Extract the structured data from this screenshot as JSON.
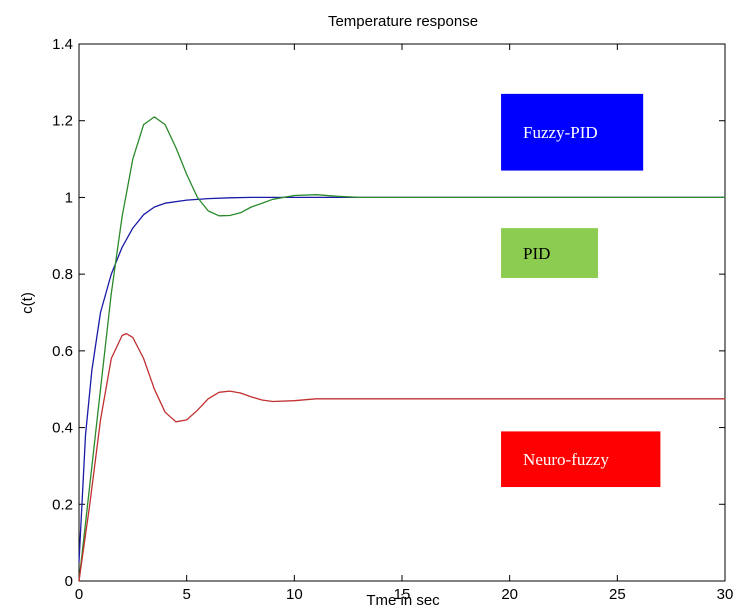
{
  "chart_data": {
    "type": "line",
    "title": "Temperature response",
    "xlabel": "Tme in sec",
    "ylabel": "c(t)",
    "xlim": [
      0,
      30
    ],
    "ylim": [
      0,
      1.4
    ],
    "xticks": [
      0,
      5,
      10,
      15,
      20,
      25,
      30
    ],
    "xtick_labels": [
      "0",
      "5",
      "10",
      "15",
      "20",
      "25",
      "30"
    ],
    "yticks": [
      0,
      0.2,
      0.4,
      0.6,
      0.8,
      1.0,
      1.2,
      1.4
    ],
    "ytick_labels": [
      "0",
      "0.2",
      "0.4",
      "0.6",
      "0.8",
      "1",
      "1.2",
      "1.4"
    ],
    "grid": false,
    "series": [
      {
        "name": "Fuzzy-PID",
        "color": "#1a1aa8",
        "x": [
          0,
          0.3,
          0.6,
          1,
          1.5,
          2,
          2.5,
          3,
          3.5,
          4,
          5,
          6,
          7,
          8,
          10,
          12,
          15,
          20,
          25,
          30
        ],
        "y": [
          0.05,
          0.38,
          0.55,
          0.7,
          0.8,
          0.87,
          0.92,
          0.955,
          0.975,
          0.985,
          0.993,
          0.997,
          0.999,
          1.0,
          1.0,
          1.0,
          1.0,
          1.0,
          1.0,
          1.0
        ]
      },
      {
        "name": "PID",
        "color": "#2a8a2a",
        "x": [
          0,
          0.5,
          1,
          1.5,
          2,
          2.5,
          3,
          3.5,
          4,
          4.5,
          5,
          5.5,
          6,
          6.5,
          7,
          7.5,
          8,
          8.5,
          9,
          10,
          11,
          12,
          13,
          15,
          20,
          25,
          30
        ],
        "y": [
          0,
          0.25,
          0.5,
          0.75,
          0.95,
          1.1,
          1.19,
          1.21,
          1.19,
          1.13,
          1.06,
          1.0,
          0.965,
          0.952,
          0.953,
          0.96,
          0.975,
          0.985,
          0.995,
          1.005,
          1.007,
          1.003,
          1.0,
          1.0,
          1.0,
          1.0,
          1.0
        ]
      },
      {
        "name": "Neuro-fuzzy",
        "color": "#c03030",
        "x": [
          0,
          0.5,
          1,
          1.5,
          2,
          2.2,
          2.5,
          3,
          3.5,
          4,
          4.5,
          5,
          5.5,
          6,
          6.5,
          7,
          7.5,
          8,
          8.5,
          9,
          10,
          11,
          12,
          15,
          20,
          25,
          30
        ],
        "y": [
          0,
          0.2,
          0.42,
          0.58,
          0.64,
          0.645,
          0.635,
          0.58,
          0.5,
          0.44,
          0.415,
          0.42,
          0.445,
          0.475,
          0.492,
          0.495,
          0.49,
          0.48,
          0.472,
          0.468,
          0.47,
          0.475,
          0.475,
          0.475,
          0.475,
          0.475,
          0.475
        ]
      }
    ],
    "annotations": [
      {
        "text": "Fuzzy-PID",
        "bg": "#0000ff",
        "fg": "#ffffff",
        "x0": 19.6,
        "x1": 26.2,
        "y0": 1.07,
        "y1": 1.27
      },
      {
        "text": "PID",
        "bg": "#8ccc50",
        "fg": "#000000",
        "x0": 19.6,
        "x1": 24.1,
        "y0": 0.79,
        "y1": 0.92
      },
      {
        "text": "Neuro-fuzzy",
        "bg": "#ff0000",
        "fg": "#ffffff",
        "x0": 19.6,
        "x1": 27.0,
        "y0": 0.245,
        "y1": 0.39
      }
    ]
  }
}
